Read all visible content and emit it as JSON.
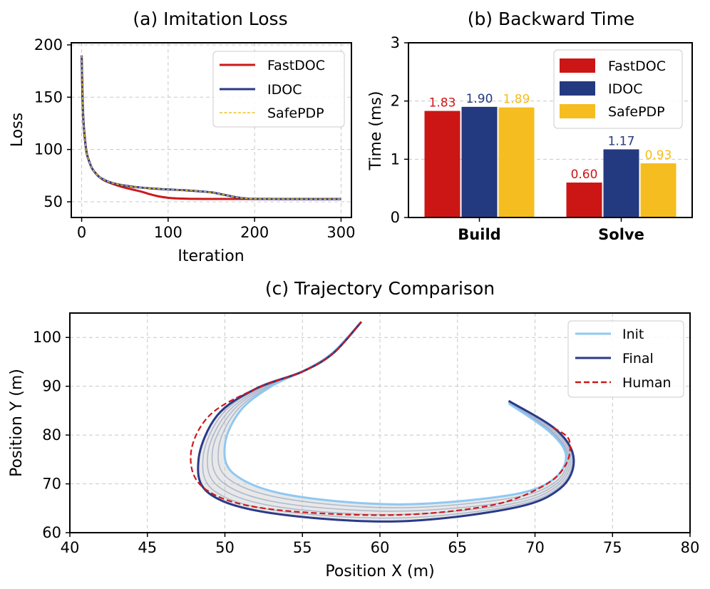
{
  "chart_data": [
    {
      "id": "a",
      "type": "line",
      "title": "(a) Imitation Loss",
      "xlabel": "Iteration",
      "ylabel": "Loss",
      "xlim": [
        -12,
        312
      ],
      "ylim": [
        35,
        202
      ],
      "xticks": [
        0,
        100,
        200,
        300
      ],
      "yticks": [
        50,
        100,
        150,
        200
      ],
      "grid": true,
      "legend_position": "top-right",
      "series": [
        {
          "name": "FastDOC",
          "color": "#cc1a1a",
          "style": "solid",
          "x": [
            0,
            1,
            2,
            4,
            6,
            9,
            12,
            16,
            20,
            25,
            30,
            40,
            50,
            60,
            70,
            80,
            90,
            100,
            110,
            120,
            130,
            150,
            170,
            200,
            250,
            300
          ],
          "y": [
            190,
            150,
            128,
            108,
            96,
            88,
            82,
            77.5,
            74,
            71,
            69,
            66,
            63.5,
            61.5,
            59.5,
            57,
            55,
            53.8,
            53.2,
            53,
            52.8,
            52.7,
            52.7,
            52.6,
            52.6,
            52.6
          ]
        },
        {
          "name": "IDOC",
          "color": "#2b3a87",
          "style": "solid",
          "x": [
            0,
            1,
            2,
            4,
            6,
            9,
            12,
            16,
            20,
            25,
            30,
            40,
            50,
            60,
            70,
            80,
            100,
            120,
            140,
            150,
            160,
            170,
            180,
            190,
            200,
            250,
            300
          ],
          "y": [
            190,
            150,
            128,
            108,
            96,
            88,
            82,
            77.5,
            74,
            71.5,
            69.5,
            67,
            65.5,
            64.3,
            63.5,
            62.8,
            61.8,
            61,
            59.8,
            59,
            57.5,
            55.8,
            54.2,
            53.2,
            52.8,
            52.6,
            52.6
          ]
        },
        {
          "name": "SafePDP",
          "color": "#f0c020",
          "style": "dashed",
          "x": [
            0,
            1,
            2,
            4,
            6,
            9,
            12,
            16,
            20,
            25,
            30,
            40,
            50,
            60,
            70,
            80,
            100,
            120,
            140,
            150,
            160,
            170,
            180,
            190,
            200,
            250,
            300
          ],
          "y": [
            190,
            150,
            128,
            108,
            96,
            88,
            82,
            77.5,
            74,
            71.5,
            69.5,
            67,
            65.5,
            64.3,
            63.5,
            62.8,
            61.8,
            61,
            59.8,
            59,
            57.5,
            55.8,
            54.2,
            53.2,
            52.8,
            52.6,
            52.6
          ]
        }
      ]
    },
    {
      "id": "b",
      "type": "bar",
      "title": "(b) Backward Time",
      "xlabel": "",
      "ylabel": "Time (ms)",
      "ylim": [
        0,
        3
      ],
      "yticks": [
        0,
        1,
        2,
        3
      ],
      "grid": true,
      "legend_position": "top-right",
      "categories": [
        "Build",
        "Solve"
      ],
      "series": [
        {
          "name": "FastDOC",
          "color": "#cc1616",
          "values": [
            1.83,
            0.6
          ],
          "labels": [
            "1.83",
            "0.60"
          ]
        },
        {
          "name": "IDOC",
          "color": "#233a80",
          "values": [
            1.9,
            1.17
          ],
          "labels": [
            "1.90",
            "1.17"
          ]
        },
        {
          "name": "SafePDP",
          "color": "#f5bd1f",
          "values": [
            1.89,
            0.93
          ],
          "labels": [
            "1.89",
            "0.93"
          ]
        }
      ]
    },
    {
      "id": "c",
      "type": "line",
      "title": "(c) Trajectory Comparison",
      "xlabel": "Position X (m)",
      "ylabel": "Position Y (m)",
      "xlim": [
        40,
        80
      ],
      "ylim": [
        60,
        105
      ],
      "xticks": [
        40,
        45,
        50,
        55,
        60,
        65,
        70,
        75,
        80
      ],
      "yticks": [
        60,
        70,
        80,
        90,
        100
      ],
      "grid": true,
      "legend_position": "top-right",
      "fill_color": "#cccccc",
      "series": [
        {
          "name": "Init",
          "color": "#8ec8f2",
          "style": "solid",
          "x": [
            68.3,
            71.0,
            72.0,
            71.0,
            68.0,
            61.0,
            54.0,
            50.6,
            50.0,
            51.0,
            53.0,
            55.3,
            57.0,
            58.8
          ],
          "y": [
            86.5,
            80.5,
            75.5,
            70.5,
            67.5,
            65.8,
            67.8,
            72.0,
            78.0,
            85.0,
            90.0,
            93.5,
            97.0,
            103.2
          ]
        },
        {
          "name": "Final",
          "color": "#2b3a87",
          "style": "solid",
          "x": [
            68.3,
            71.4,
            72.5,
            71.6,
            68.5,
            61.0,
            53.0,
            49.0,
            48.3,
            49.5,
            52.0,
            55.0,
            57.0,
            58.8
          ],
          "y": [
            87.0,
            81.0,
            75.0,
            69.0,
            65.0,
            62.3,
            64.0,
            68.0,
            75.0,
            84.0,
            89.5,
            93.0,
            96.8,
            103.2
          ]
        },
        {
          "name": "Human",
          "color": "#cc1a1a",
          "style": "dashed",
          "x": [
            71.2,
            72.2,
            72.0,
            70.5,
            67.0,
            60.5,
            52.5,
            48.7,
            47.8,
            49.0,
            52.0,
            55.0,
            57.0,
            58.8
          ],
          "y": [
            81.5,
            79.0,
            74.0,
            69.5,
            65.5,
            63.6,
            65.0,
            69.0,
            76.0,
            84.0,
            89.5,
            93.0,
            96.8,
            103.2
          ]
        }
      ],
      "ensemble": [
        {
          "x": [
            68.3,
            71.0,
            72.0,
            71.0,
            68.0,
            61.0,
            54.0,
            50.6,
            50.0,
            51.0,
            53.0,
            55.3,
            57.0,
            58.8
          ],
          "y": [
            86.5,
            80.5,
            75.5,
            70.5,
            67.5,
            65.8,
            67.8,
            72.0,
            78.0,
            85.0,
            90.0,
            93.5,
            97.0,
            103.2
          ]
        },
        {
          "x": [
            68.3,
            71.1,
            72.1,
            71.2,
            68.1,
            61.0,
            53.8,
            50.2,
            49.6,
            50.7,
            52.8,
            55.2,
            57.0,
            58.8
          ],
          "y": [
            86.6,
            80.6,
            75.4,
            70.1,
            66.9,
            65.1,
            67.0,
            71.1,
            77.4,
            84.8,
            89.9,
            93.4,
            96.9,
            103.2
          ]
        },
        {
          "x": [
            68.3,
            71.1,
            72.2,
            71.3,
            68.2,
            61.0,
            53.6,
            49.9,
            49.2,
            50.4,
            52.6,
            55.2,
            57.0,
            58.8
          ],
          "y": [
            86.7,
            80.7,
            75.3,
            69.8,
            66.3,
            64.4,
            66.1,
            70.2,
            76.8,
            84.6,
            89.8,
            93.3,
            96.9,
            103.2
          ]
        },
        {
          "x": [
            68.3,
            71.2,
            72.3,
            71.4,
            68.3,
            61.0,
            53.4,
            49.6,
            48.9,
            50.1,
            52.4,
            55.1,
            57.0,
            58.8
          ],
          "y": [
            86.8,
            80.8,
            75.2,
            69.5,
            65.8,
            63.7,
            65.3,
            69.4,
            76.2,
            84.4,
            89.7,
            93.2,
            96.9,
            103.2
          ]
        },
        {
          "x": [
            68.3,
            71.3,
            72.4,
            71.5,
            68.4,
            61.0,
            53.2,
            49.3,
            48.6,
            49.8,
            52.2,
            55.1,
            57.0,
            58.8
          ],
          "y": [
            86.9,
            80.9,
            75.1,
            69.2,
            65.4,
            63.0,
            64.6,
            68.6,
            75.6,
            84.2,
            89.6,
            93.1,
            96.8,
            103.2
          ]
        },
        {
          "x": [
            68.3,
            71.4,
            72.5,
            71.6,
            68.5,
            61.0,
            53.0,
            49.0,
            48.3,
            49.5,
            52.0,
            55.0,
            57.0,
            58.8
          ],
          "y": [
            87.0,
            81.0,
            75.0,
            69.0,
            65.0,
            62.3,
            64.0,
            68.0,
            75.0,
            84.0,
            89.5,
            93.0,
            96.8,
            103.2
          ]
        }
      ]
    }
  ]
}
